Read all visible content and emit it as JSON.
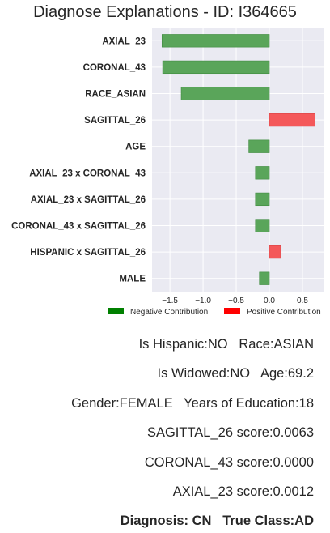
{
  "chart_data": {
    "type": "bar",
    "orientation": "horizontal",
    "title": "Diagnose Explanations - ID: I364665",
    "xlabel": "",
    "ylabel": "",
    "categories": [
      "AXIAL_23",
      "CORONAL_43",
      "RACE_ASIAN",
      "SAGITTAL_26",
      "AGE",
      "AXIAL_23 x CORONAL_43",
      "AXIAL_23 x SAGITTAL_26",
      "CORONAL_43 x SAGITTAL_26",
      "HISPANIC x SAGITTAL_26",
      "MALE"
    ],
    "values": [
      -1.62,
      -1.61,
      -1.33,
      0.69,
      -0.31,
      -0.21,
      -0.21,
      -0.21,
      0.17,
      -0.15
    ],
    "xlim": [
      -1.77,
      0.83
    ],
    "xticks": [
      -1.5,
      -1.0,
      -0.5,
      0.0,
      0.5
    ],
    "xtick_labels": [
      "−1.5",
      "−1.0",
      "−0.5",
      "0.0",
      "0.5"
    ],
    "grid": true,
    "legend_position": "bottom",
    "legend": [
      {
        "label": "Negative Contribution",
        "color": "#008000"
      },
      {
        "label": "Positive Contribution",
        "color": "#ff0000"
      }
    ],
    "colors": {
      "negative": "#5aa55a",
      "positive": "#f4585a",
      "background": "#eaeaf2"
    }
  },
  "info": {
    "line1": "Is Hispanic:NO   Race:ASIAN",
    "line2": "Is Widowed:NO   Age:69.2",
    "line3": "Gender:FEMALE   Years of Education:18",
    "line4": "SAGITTAL_26 score:0.0063",
    "line5": "CORONAL_43 score:0.0000",
    "line6": "AXIAL_23 score:0.0012",
    "line7": "Diagnosis: CN   True Class:AD"
  }
}
